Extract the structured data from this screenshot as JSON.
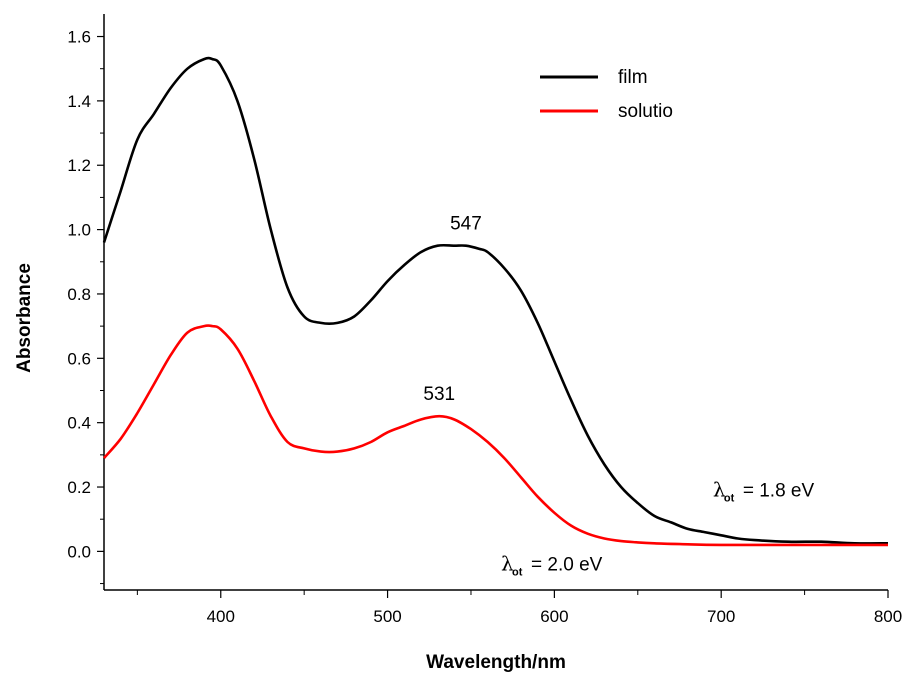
{
  "chart_data": {
    "type": "line",
    "xlabel": "Wavelength/nm",
    "ylabel": "Absorbance",
    "xlim": [
      330,
      800
    ],
    "ylim": [
      -0.12,
      1.67
    ],
    "x_ticks": [
      400,
      500,
      600,
      700,
      800
    ],
    "y_ticks": [
      0.0,
      0.2,
      0.4,
      0.6,
      0.8,
      1.0,
      1.2,
      1.4,
      1.6
    ],
    "x_tick_labels": [
      "400",
      "500",
      "600",
      "700",
      "800"
    ],
    "y_tick_labels": [
      "0.0",
      "0.2",
      "0.4",
      "0.6",
      "0.8",
      "1.0",
      "1.2",
      "1.4",
      "1.6"
    ],
    "grid": false,
    "legend_position": "top-right",
    "series": [
      {
        "name": "film",
        "color": "#000000",
        "x": [
          330,
          340,
          350,
          360,
          370,
          380,
          390,
          395,
          400,
          410,
          420,
          430,
          440,
          450,
          460,
          470,
          480,
          490,
          500,
          510,
          520,
          530,
          540,
          547,
          555,
          560,
          570,
          580,
          590,
          600,
          610,
          620,
          630,
          640,
          650,
          660,
          670,
          680,
          690,
          700,
          710,
          720,
          740,
          760,
          780,
          800
        ],
        "y": [
          0.96,
          1.12,
          1.28,
          1.36,
          1.44,
          1.5,
          1.53,
          1.53,
          1.51,
          1.4,
          1.22,
          1.0,
          0.82,
          0.73,
          0.71,
          0.71,
          0.73,
          0.78,
          0.84,
          0.89,
          0.93,
          0.95,
          0.95,
          0.95,
          0.94,
          0.93,
          0.88,
          0.81,
          0.71,
          0.59,
          0.47,
          0.36,
          0.27,
          0.2,
          0.15,
          0.11,
          0.09,
          0.07,
          0.06,
          0.05,
          0.04,
          0.035,
          0.03,
          0.03,
          0.025,
          0.025
        ]
      },
      {
        "name": "solutio",
        "color": "#ff0000",
        "x": [
          330,
          340,
          350,
          360,
          370,
          380,
          390,
          395,
          400,
          410,
          420,
          430,
          440,
          450,
          460,
          470,
          480,
          490,
          500,
          510,
          520,
          531,
          540,
          550,
          560,
          570,
          580,
          590,
          600,
          610,
          620,
          630,
          640,
          650,
          660,
          680,
          700,
          740,
          800
        ],
        "y": [
          0.29,
          0.35,
          0.43,
          0.52,
          0.61,
          0.68,
          0.7,
          0.7,
          0.69,
          0.63,
          0.53,
          0.42,
          0.34,
          0.32,
          0.31,
          0.31,
          0.32,
          0.34,
          0.37,
          0.39,
          0.41,
          0.42,
          0.41,
          0.38,
          0.34,
          0.29,
          0.23,
          0.17,
          0.12,
          0.08,
          0.055,
          0.04,
          0.032,
          0.028,
          0.025,
          0.022,
          0.02,
          0.02,
          0.02
        ]
      }
    ],
    "annotations": [
      {
        "text": "547",
        "x": 547,
        "y": 1.0
      },
      {
        "text": "531",
        "x": 531,
        "y": 0.47
      }
    ],
    "band_gap_labels": [
      {
        "symbol": "λ",
        "sub": "ot",
        "text": "= 1.8 eV",
        "x": 695,
        "y": 0.17
      },
      {
        "symbol": "λ",
        "sub": "ot",
        "text": "= 2.0 eV",
        "x": 568,
        "y": -0.06
      }
    ]
  }
}
